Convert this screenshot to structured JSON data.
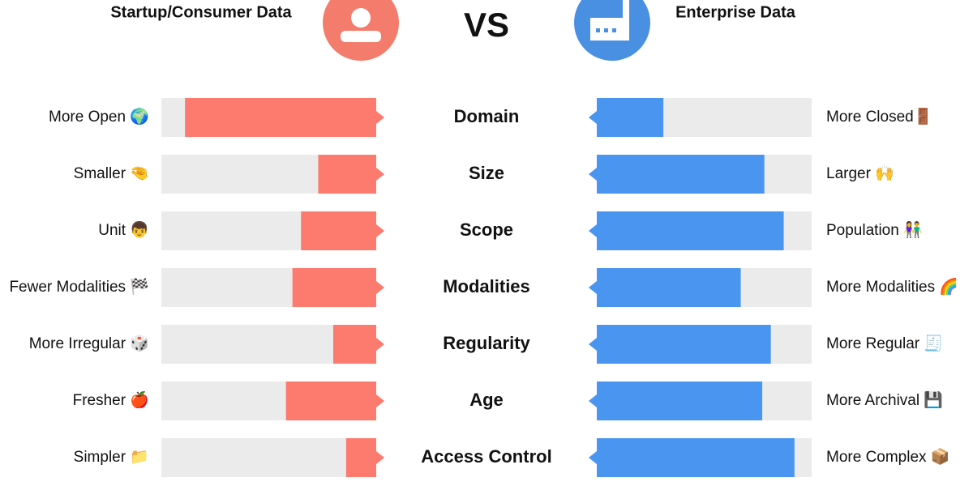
{
  "chart_data": {
    "type": "diverging_bar",
    "header": "VS",
    "categories": [
      "Domain",
      "Size",
      "Scope",
      "Modalities",
      "Regularity",
      "Age",
      "Access Control"
    ],
    "xlim": [
      0,
      100
    ],
    "series": [
      {
        "name": "Startup/Consumer Data",
        "color": "#fd7b6e",
        "values": [
          89,
          27,
          35,
          39,
          20,
          42,
          14
        ],
        "labels": [
          "More Open 🌍",
          "Smaller 🤏",
          "Unit 👦",
          "Fewer Modalities 🏁",
          "More Irregular 🎲",
          "Fresher 🍎",
          "Simpler 📁"
        ]
      },
      {
        "name": "Enterprise Data",
        "color": "#4a95f0",
        "values": [
          31,
          78,
          87,
          67,
          81,
          77,
          92
        ],
        "labels": [
          "More Closed🚪",
          "Larger 🙌",
          "Population 👫",
          "More Modalities 🌈",
          "More Regular 🧾",
          "More Archival 💾",
          "More Complex 📦"
        ]
      }
    ]
  }
}
